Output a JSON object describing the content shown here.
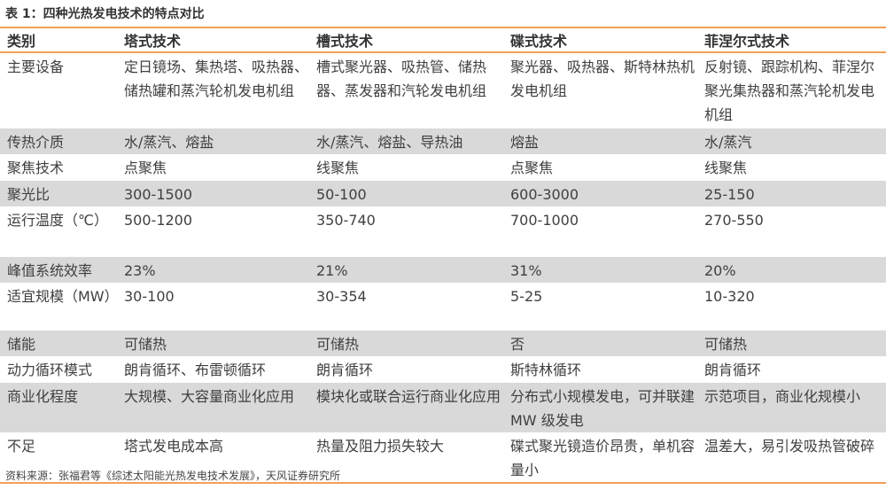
{
  "title": "表 1：四种光热发电技术的特点对比",
  "headers": [
    "类别",
    "塔式技术",
    "槽式技术",
    "碟式技术",
    "菲涅尔式技术"
  ],
  "rows": [
    {
      "shade": false,
      "cells": [
        "主要设备",
        "定日镜场、集热塔、吸热器、储热罐和蒸汽轮机发电机组",
        "槽式聚光器、吸热管、储热器、蒸发器和汽轮发电机组",
        "聚光器、吸热器、斯特林热机发电机组",
        "反射镜、跟踪机构、菲涅尔聚光集热器和蒸汽轮机发电机组"
      ]
    },
    {
      "shade": true,
      "cells": [
        "传热介质",
        "水/蒸汽、熔盐",
        "水/蒸汽、熔盐、导热油",
        "熔盐",
        "水/蒸汽"
      ]
    },
    {
      "shade": false,
      "cells": [
        "聚焦技术",
        "点聚焦",
        "线聚焦",
        "点聚焦",
        "线聚焦"
      ]
    },
    {
      "shade": true,
      "cells": [
        "聚光比",
        "300-1500",
        "50-100",
        "600-3000",
        "25-150"
      ]
    },
    {
      "shade": false,
      "cells": [
        "运行温度（℃）",
        "500-1200",
        "350-740",
        "700-1000",
        "270-550"
      ]
    },
    {
      "shade": true,
      "cells": [
        "峰值系统效率",
        "23%",
        "21%",
        "31%",
        "20%"
      ]
    },
    {
      "shade": false,
      "cells": [
        "适宜规模（MW）",
        "30-100",
        "30-354",
        "5-25",
        "10-320"
      ]
    },
    {
      "shade": true,
      "cells": [
        "储能",
        "可储热",
        "可储热",
        "否",
        "可储热"
      ]
    },
    {
      "shade": false,
      "cells": [
        "动力循环模式",
        "朗肯循环、布雷顿循环",
        "朗肯循环",
        "斯特林循环",
        "朗肯循环"
      ]
    },
    {
      "shade": true,
      "cells": [
        "商业化程度",
        "大规模、大容量商业化应用",
        "模块化或联合运行商业化应用",
        "分布式小规模发电，可并联建 MW 级发电",
        "示范项目，商业化规模小"
      ]
    },
    {
      "shade": false,
      "cells": [
        "不足",
        "塔式发电成本高",
        "热量及阻力损失较大",
        "碟式聚光镜造价昂贵，单机容量小",
        "温差大，易引发吸热管破碎"
      ]
    }
  ],
  "source": "资料来源：张福君等《综述太阳能光热发电技术发展》，天风证券研究所",
  "colors": {
    "accent": "#f2a057",
    "shade": "#d9d9d9"
  }
}
